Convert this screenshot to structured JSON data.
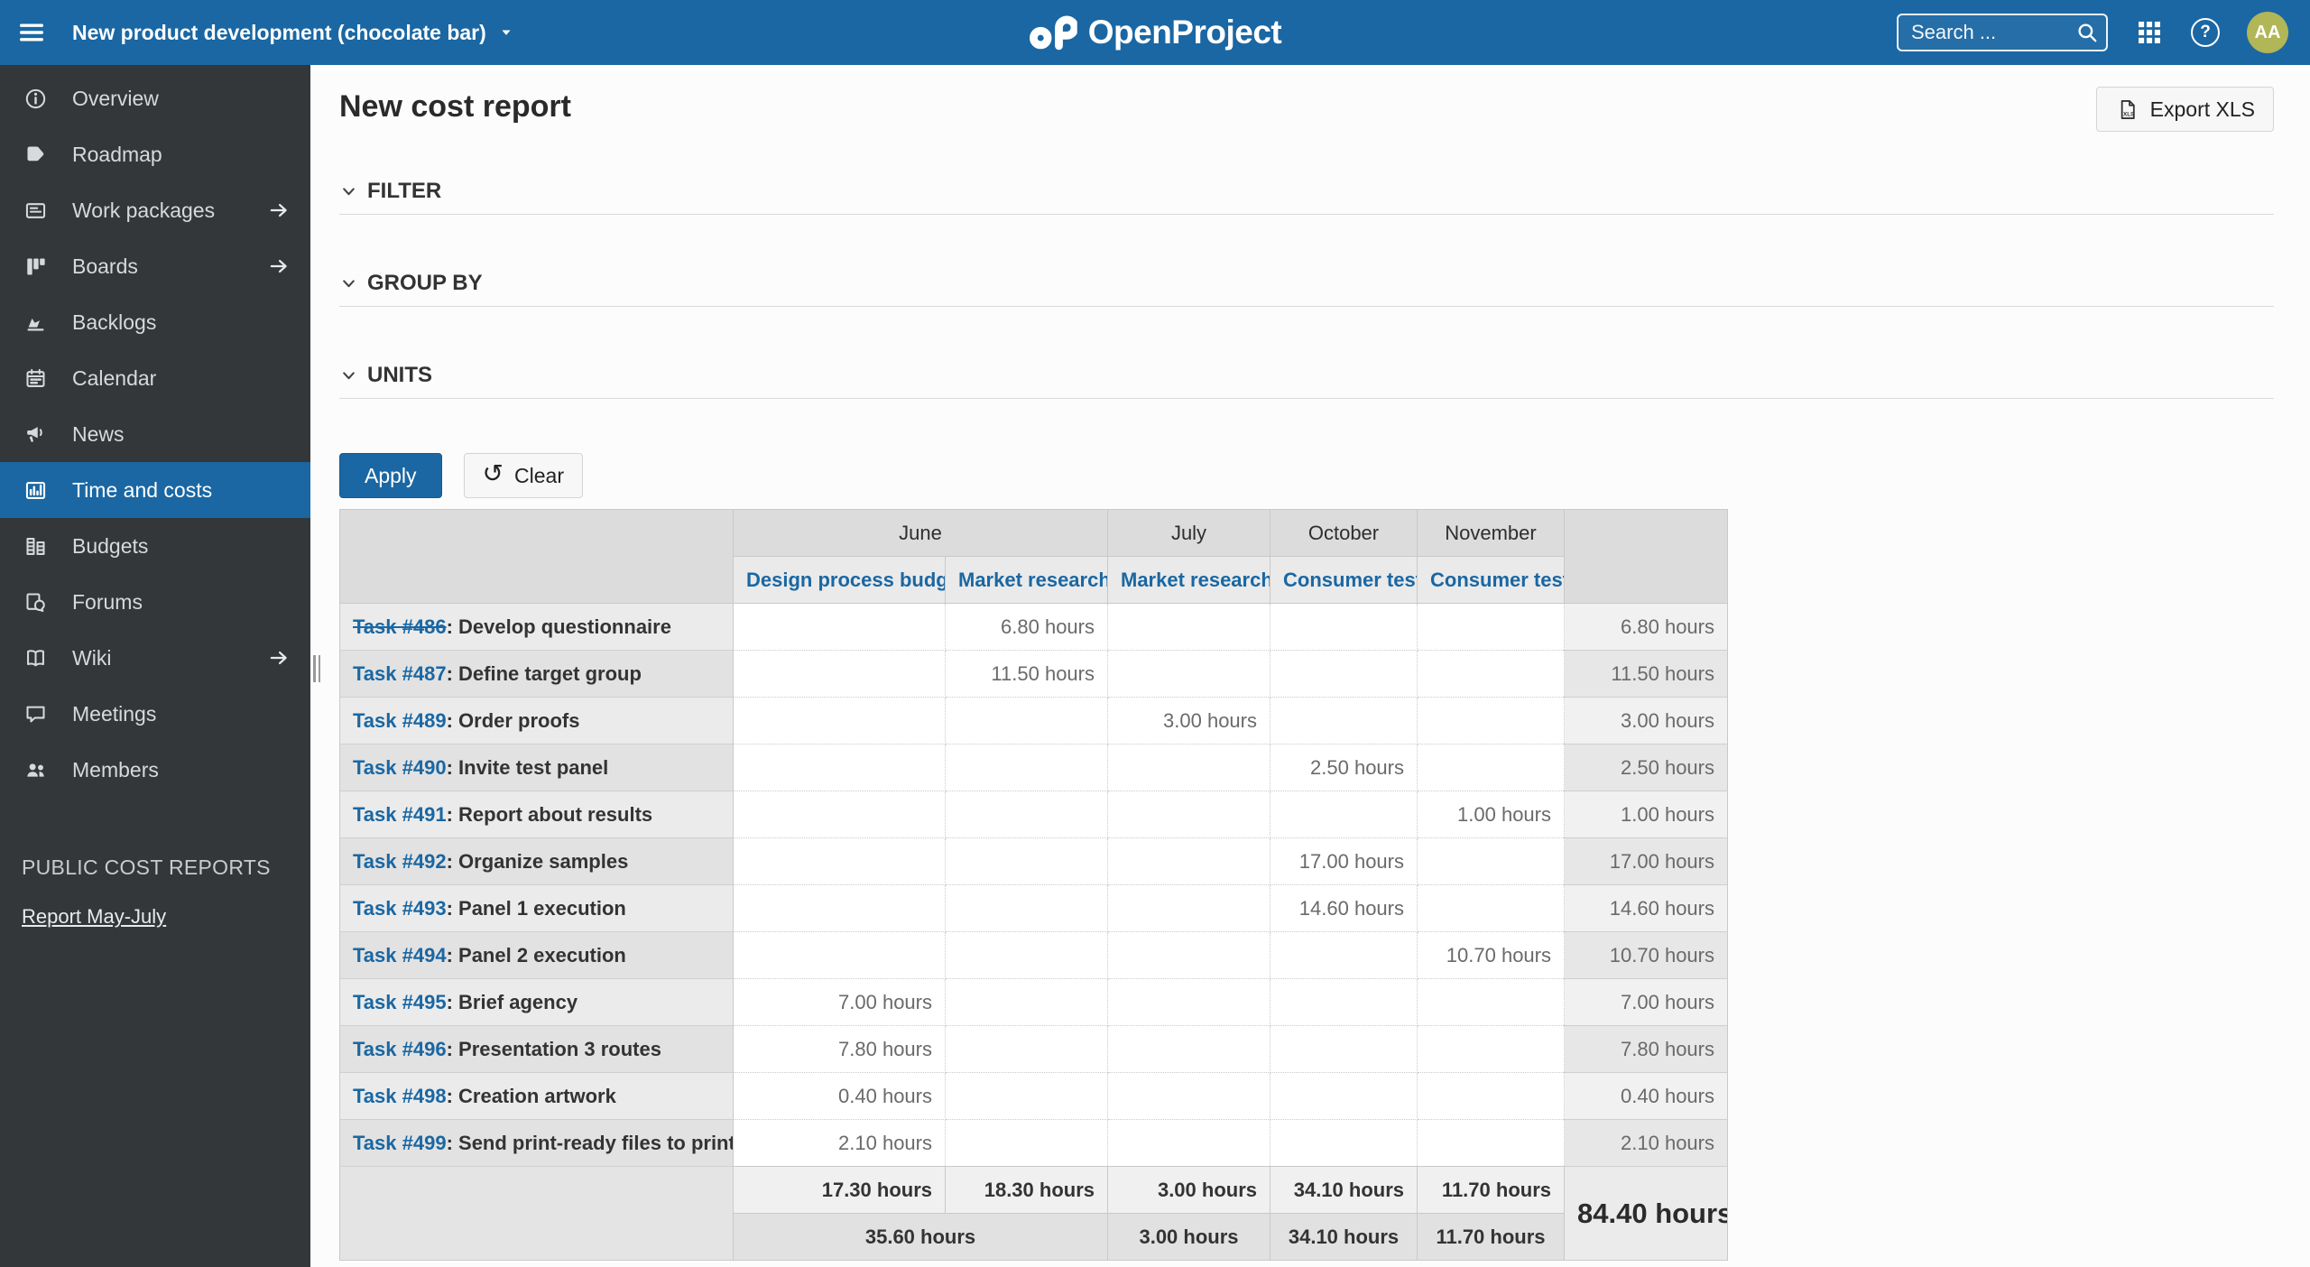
{
  "colors": {
    "primary_blue": "#1A67A3",
    "topbar_bg": "#1A67A3",
    "sidebar_bg": "#333739",
    "selected_item_bg": "#1A67A3",
    "avatar_bg": "#B1B656",
    "link_blue": "#1A67A3"
  },
  "topbar": {
    "menu_icon": "menu-icon",
    "project_selector": "New product development (chocolate bar)",
    "project_selector_icon": "chevron-down-icon",
    "logo_text": "OpenProject",
    "search_placeholder": "Search ...",
    "search_icon": "search-icon",
    "grid_icon": "grid-icon",
    "help_icon": "help-icon",
    "avatar_initials": "AA"
  },
  "sidebar": {
    "items": [
      {
        "label": "Overview",
        "icon": "info-icon",
        "has_arrow": false,
        "selected": false
      },
      {
        "label": "Roadmap",
        "icon": "roadmap-icon",
        "has_arrow": false,
        "selected": false
      },
      {
        "label": "Work packages",
        "icon": "work-packages-icon",
        "has_arrow": true,
        "selected": false
      },
      {
        "label": "Boards",
        "icon": "boards-icon",
        "has_arrow": true,
        "selected": false
      },
      {
        "label": "Backlogs",
        "icon": "backlogs-icon",
        "has_arrow": false,
        "selected": false
      },
      {
        "label": "Calendar",
        "icon": "calendar-icon",
        "has_arrow": false,
        "selected": false
      },
      {
        "label": "News",
        "icon": "news-icon",
        "has_arrow": false,
        "selected": false
      },
      {
        "label": "Time and costs",
        "icon": "time-and-costs-icon",
        "has_arrow": false,
        "selected": true
      },
      {
        "label": "Budgets",
        "icon": "budgets-icon",
        "has_arrow": false,
        "selected": false
      },
      {
        "label": "Forums",
        "icon": "forums-icon",
        "has_arrow": false,
        "selected": false
      },
      {
        "label": "Wiki",
        "icon": "wiki-icon",
        "has_arrow": true,
        "selected": false
      },
      {
        "label": "Meetings",
        "icon": "meetings-icon",
        "has_arrow": false,
        "selected": false
      },
      {
        "label": "Members",
        "icon": "members-icon",
        "has_arrow": false,
        "selected": false
      }
    ],
    "section_title": "PUBLIC COST REPORTS",
    "report_link": "Report May-July"
  },
  "main": {
    "title": "New cost report",
    "export_button": "Export XLS",
    "export_icon": "xls-file-icon",
    "sections": [
      {
        "label": "FILTER",
        "icon": "chevron-down-icon"
      },
      {
        "label": "GROUP BY",
        "icon": "chevron-down-icon"
      },
      {
        "label": "UNITS",
        "icon": "chevron-down-icon"
      }
    ],
    "apply_button": "Apply",
    "clear_button": "Clear",
    "clear_icon": "undo-icon"
  },
  "table": {
    "months": [
      {
        "label": "June",
        "colspan": 2
      },
      {
        "label": "July",
        "colspan": 1
      },
      {
        "label": "October",
        "colspan": 1
      },
      {
        "label": "November",
        "colspan": 1
      }
    ],
    "cost_types": [
      "Design process budget",
      "Market research",
      "Market research",
      "Consumer test",
      "Consumer test"
    ],
    "rows": [
      {
        "id": "Task #486",
        "name": ": Develop questionnaire",
        "closed": true,
        "values": [
          "",
          "6.80 hours",
          "",
          "",
          ""
        ],
        "total": "6.80 hours"
      },
      {
        "id": "Task #487",
        "name": ": Define target group",
        "closed": false,
        "values": [
          "",
          "11.50 hours",
          "",
          "",
          ""
        ],
        "total": "11.50 hours"
      },
      {
        "id": "Task #489",
        "name": ": Order proofs",
        "closed": false,
        "values": [
          "",
          "",
          "3.00 hours",
          "",
          ""
        ],
        "total": "3.00 hours"
      },
      {
        "id": "Task #490",
        "name": ": Invite test panel",
        "closed": false,
        "values": [
          "",
          "",
          "",
          "2.50 hours",
          ""
        ],
        "total": "2.50 hours"
      },
      {
        "id": "Task #491",
        "name": ": Report about results",
        "closed": false,
        "values": [
          "",
          "",
          "",
          "",
          "1.00 hours"
        ],
        "total": "1.00 hours"
      },
      {
        "id": "Task #492",
        "name": ": Organize samples",
        "closed": false,
        "values": [
          "",
          "",
          "",
          "17.00 hours",
          ""
        ],
        "total": "17.00 hours"
      },
      {
        "id": "Task #493",
        "name": ": Panel 1 execution",
        "closed": false,
        "values": [
          "",
          "",
          "",
          "14.60 hours",
          ""
        ],
        "total": "14.60 hours"
      },
      {
        "id": "Task #494",
        "name": ": Panel 2 execution",
        "closed": false,
        "values": [
          "",
          "",
          "",
          "",
          "10.70 hours"
        ],
        "total": "10.70 hours"
      },
      {
        "id": "Task #495",
        "name": ": Brief agency",
        "closed": false,
        "values": [
          "7.00 hours",
          "",
          "",
          "",
          ""
        ],
        "total": "7.00 hours"
      },
      {
        "id": "Task #496",
        "name": ": Presentation 3 routes",
        "closed": false,
        "values": [
          "7.80 hours",
          "",
          "",
          "",
          ""
        ],
        "total": "7.80 hours"
      },
      {
        "id": "Task #498",
        "name": ": Creation artwork",
        "closed": false,
        "values": [
          "0.40 hours",
          "",
          "",
          "",
          ""
        ],
        "total": "0.40 hours"
      },
      {
        "id": "Task #499",
        "name": ": Send print-ready files to printer",
        "closed": false,
        "values": [
          "2.10 hours",
          "",
          "",
          "",
          ""
        ],
        "total": "2.10 hours"
      }
    ],
    "footer": {
      "column_totals": [
        "17.30 hours",
        "18.30 hours",
        "3.00 hours",
        "34.10 hours",
        "11.70 hours"
      ],
      "month_totals": [
        {
          "label": "35.60 hours",
          "colspan": 2
        },
        {
          "label": "3.00 hours",
          "colspan": 1
        },
        {
          "label": "34.10 hours",
          "colspan": 1
        },
        {
          "label": "11.70 hours",
          "colspan": 1
        }
      ],
      "grand_total": "84.40 hours"
    }
  }
}
